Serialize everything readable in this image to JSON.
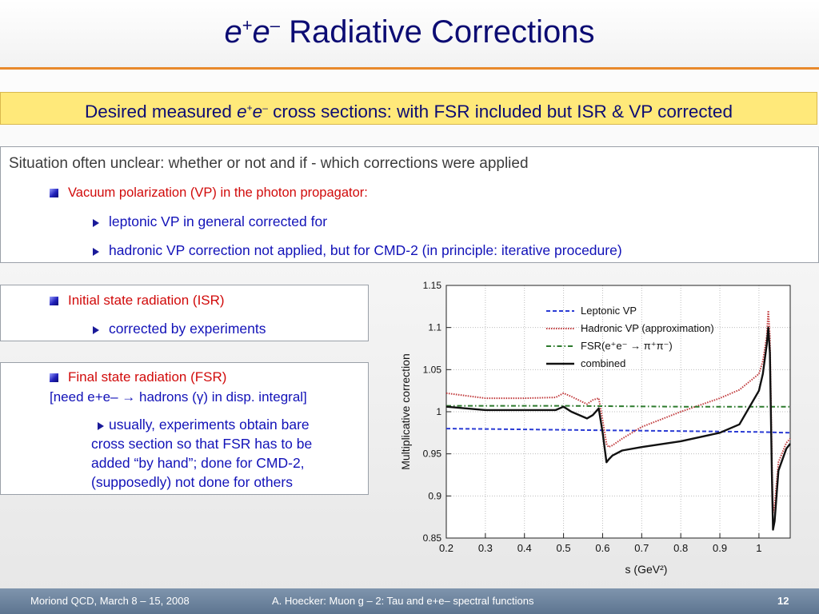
{
  "title": {
    "prefix_ital_1": "e",
    "sup_plus": "+",
    "prefix_ital_2": "e",
    "sup_minus": "–",
    "rest": " Radiative Corrections"
  },
  "highlight": {
    "pre": "Desired measured ",
    "e1": "e",
    "plus": "+",
    "e2": "e",
    "minus": "–",
    "post": " cross sections: with FSR included but ISR & VP corrected"
  },
  "situation": {
    "heading": "Situation often unclear: whether or not  and if - which corrections were applied",
    "vp_label": "Vacuum polarization (VP) in the photon propagator:",
    "vp_item1": "leptonic VP in general corrected for",
    "vp_item2": "hadronic VP correction not applied, but for CMD-2 (in principle: iterative procedure)"
  },
  "isr": {
    "label": "Initial state radiation (ISR)",
    "item1": "corrected by experiments"
  },
  "fsr": {
    "label": "Final state radiation (FSR)",
    "need_line": "[need e+e– → hadrons (γ) in disp. integral]",
    "item_lines": [
      "usually, experiments obtain bare",
      "cross section so that FSR has to be",
      "added “by hand”; done for CMD-2,",
      "(supposedly) not done for others"
    ]
  },
  "footer": {
    "left": "Moriond QCD, March 8 – 15, 2008",
    "center": "A. Hoecker: Muon g – 2: Tau and e+e– spectral functions",
    "page": "12"
  },
  "colors": {
    "title": "#0c0c73",
    "accent_rule": "#e8892b",
    "highlight_bg": "#ffe97a",
    "red": "#d10a0a",
    "blue": "#1212b8",
    "footer_bg": "#6b8299"
  },
  "chart_data": {
    "type": "line",
    "xlabel": "s   (GeV²)",
    "ylabel": "Multiplicative correction",
    "xlim": [
      0.2,
      1.08
    ],
    "ylim": [
      0.85,
      1.15
    ],
    "xticks": [
      0.2,
      0.3,
      0.4,
      0.5,
      0.6,
      0.7,
      0.8,
      0.9,
      1
    ],
    "yticks": [
      0.85,
      0.9,
      0.95,
      1,
      1.05,
      1.1,
      1.15
    ],
    "ytick_labels": [
      "0.85",
      "0.9",
      "0.95",
      "1",
      "1.05",
      "1.1",
      "1.15"
    ],
    "grid": true,
    "legend_position": "top-right",
    "series": [
      {
        "name": "Leptonic VP",
        "color": "#2a3bd4",
        "dash": "dashed",
        "x": [
          0.2,
          0.4,
          0.6,
          0.8,
          1.0,
          1.08
        ],
        "y": [
          0.98,
          0.979,
          0.978,
          0.977,
          0.976,
          0.975
        ]
      },
      {
        "name": "Hadronic VP (approximation)",
        "color": "#c0393b",
        "dash": "dotted",
        "x": [
          0.2,
          0.3,
          0.4,
          0.48,
          0.5,
          0.52,
          0.56,
          0.575,
          0.59,
          0.6,
          0.61,
          0.615,
          0.625,
          0.65,
          0.7,
          0.8,
          0.9,
          0.95,
          1.0,
          1.01,
          1.02,
          1.024,
          1.028,
          1.033,
          1.036,
          1.04,
          1.05,
          1.07,
          1.08
        ],
        "y": [
          1.022,
          1.016,
          1.016,
          1.017,
          1.022,
          1.018,
          1.009,
          1.014,
          1.016,
          0.99,
          0.962,
          0.958,
          0.96,
          0.968,
          0.982,
          1.0,
          1.016,
          1.026,
          1.045,
          1.06,
          1.09,
          1.12,
          1.09,
          0.95,
          0.88,
          0.89,
          0.94,
          0.963,
          0.968
        ]
      },
      {
        "name": "FSR(e⁺e⁻ → π⁺π⁻)",
        "color": "#2c7a2c",
        "dash": "dashdot",
        "x": [
          0.2,
          0.5,
          0.8,
          1.0,
          1.08
        ],
        "y": [
          1.007,
          1.007,
          1.006,
          1.006,
          1.006
        ]
      },
      {
        "name": "combined",
        "color": "#111111",
        "dash": "solid",
        "x": [
          0.2,
          0.3,
          0.4,
          0.48,
          0.5,
          0.52,
          0.56,
          0.575,
          0.59,
          0.6,
          0.61,
          0.615,
          0.625,
          0.65,
          0.7,
          0.8,
          0.9,
          0.95,
          1.0,
          1.01,
          1.02,
          1.024,
          1.028,
          1.033,
          1.036,
          1.04,
          1.05,
          1.07,
          1.08
        ],
        "y": [
          1.006,
          1.002,
          1.002,
          1.002,
          1.006,
          1.0,
          0.992,
          0.996,
          1.004,
          0.975,
          0.94,
          0.943,
          0.948,
          0.954,
          0.958,
          0.965,
          0.975,
          0.985,
          1.025,
          1.045,
          1.08,
          1.1,
          1.07,
          0.93,
          0.86,
          0.87,
          0.93,
          0.956,
          0.962
        ]
      }
    ]
  }
}
